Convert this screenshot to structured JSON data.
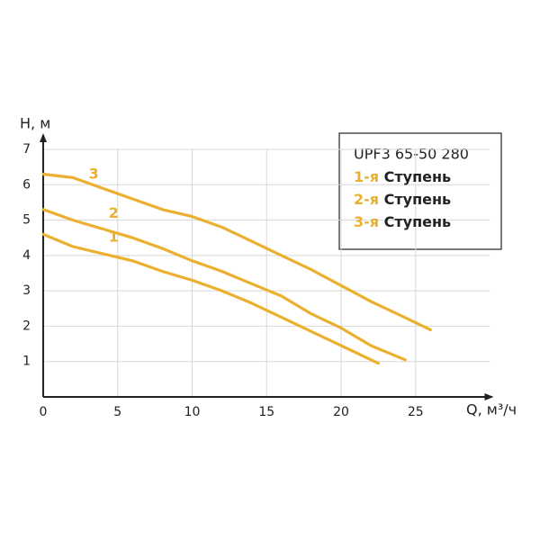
{
  "chart_data": {
    "type": "line",
    "y_label": "H, м",
    "x_label": "Q, м³/ч",
    "legend_title": "UPF3 65-50 280",
    "xlim": [
      0,
      30
    ],
    "ylim": [
      0,
      7
    ],
    "xticks": [
      0,
      5,
      10,
      15,
      20,
      25
    ],
    "yticks": [
      1,
      2,
      3,
      4,
      5,
      6,
      7
    ],
    "grid": true,
    "series": [
      {
        "name": "1-я Ступень",
        "label": "1",
        "color": "#ebb02f",
        "x": [
          0,
          2,
          4,
          6,
          8,
          10,
          12,
          14,
          16,
          18,
          20,
          22.5
        ],
        "values": [
          4.6,
          4.25,
          4.05,
          3.85,
          3.55,
          3.3,
          3.0,
          2.65,
          2.25,
          1.85,
          1.45,
          0.95
        ]
      },
      {
        "name": "2-я Ступень",
        "label": "2",
        "color": "#ebb02f",
        "x": [
          0,
          2,
          4,
          6,
          8,
          10,
          12,
          14,
          16,
          18,
          20,
          22,
          24.3
        ],
        "values": [
          5.3,
          5.0,
          4.75,
          4.5,
          4.2,
          3.85,
          3.55,
          3.2,
          2.85,
          2.35,
          1.95,
          1.45,
          1.05
        ]
      },
      {
        "name": "3-я Ступень",
        "label": "3",
        "color": "#ebb02f",
        "x": [
          0,
          2,
          4,
          6,
          8,
          10,
          12,
          14,
          16,
          18,
          20,
          22,
          24,
          26
        ],
        "values": [
          6.3,
          6.2,
          5.9,
          5.6,
          5.3,
          5.1,
          4.8,
          4.4,
          4.0,
          3.6,
          3.15,
          2.7,
          2.3,
          1.9
        ]
      }
    ]
  }
}
